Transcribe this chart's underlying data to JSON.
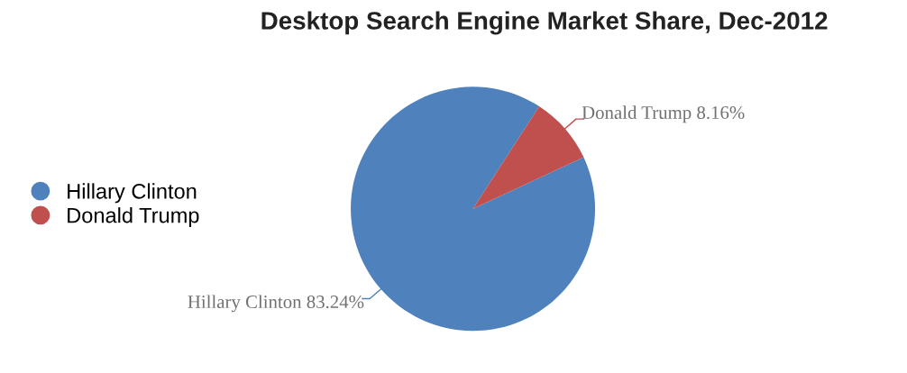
{
  "chart_data": {
    "type": "pie",
    "title": "Desktop Search Engine Market Share, Dec-2012",
    "categories": [
      "Hillary Clinton",
      "Donald Trump"
    ],
    "values": [
      83.24,
      8.16
    ],
    "colors": [
      "#4f81bd",
      "#c0504d"
    ],
    "value_labels": [
      "83.24%",
      "8.16%"
    ],
    "legend": "left"
  }
}
